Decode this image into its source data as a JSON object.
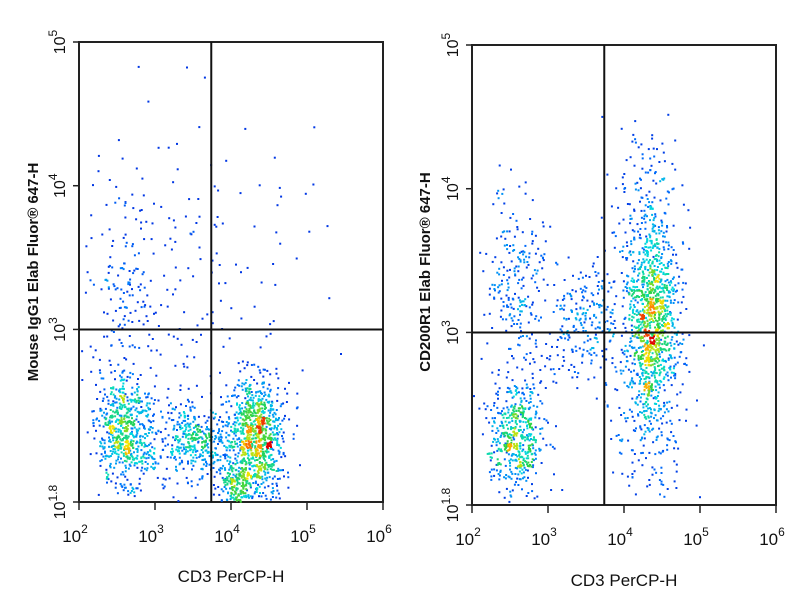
{
  "chart_data": [
    {
      "type": "scatter",
      "panel": "left",
      "title": "",
      "xlabel": "CD3 PerCP-H",
      "ylabel": "Mouse IgG1 Elab Fluor® 647-H",
      "x_scale": "log",
      "y_scale": "log",
      "xlim": [
        100,
        1000000
      ],
      "ylim": [
        63,
        100000
      ],
      "x_ticks": [
        {
          "value": 100,
          "base": "10",
          "exp": "2"
        },
        {
          "value": 1000,
          "base": "10",
          "exp": "3"
        },
        {
          "value": 10000,
          "base": "10",
          "exp": "4"
        },
        {
          "value": 100000,
          "base": "10",
          "exp": "5"
        },
        {
          "value": 1000000,
          "base": "10",
          "exp": "6"
        }
      ],
      "y_ticks": [
        {
          "value": 63,
          "base": "10",
          "exp": "1.8"
        },
        {
          "value": 1000,
          "base": "10",
          "exp": "3"
        },
        {
          "value": 10000,
          "base": "10",
          "exp": "4"
        },
        {
          "value": 100000,
          "base": "10",
          "exp": "5"
        }
      ],
      "gate": {
        "x": 5500,
        "y": 1000
      },
      "populations": [
        {
          "center_x": 400,
          "center_y": 185,
          "spread_x": 0.19,
          "spread_y": 0.2,
          "count": 600
        },
        {
          "center_x": 22000,
          "center_y": 180,
          "spread_x": 0.17,
          "spread_y": 0.22,
          "count": 900
        },
        {
          "center_x": 3500,
          "center_y": 170,
          "spread_x": 0.3,
          "spread_y": 0.15,
          "count": 450
        },
        {
          "center_x": 400,
          "center_y": 1600,
          "spread_x": 0.2,
          "spread_y": 0.4,
          "count": 140
        },
        {
          "center_x": 12000,
          "center_y": 80,
          "spread_x": 0.12,
          "spread_y": 0.08,
          "count": 160
        },
        {
          "center_x": 3000,
          "center_y": 2500,
          "spread_x": 0.9,
          "spread_y": 0.55,
          "count": 170
        }
      ]
    },
    {
      "type": "scatter",
      "panel": "right",
      "title": "",
      "xlabel": "CD3 PerCP-H",
      "ylabel": "CD200R1 Elab Fluor® 647-H",
      "x_scale": "log",
      "y_scale": "log",
      "xlim": [
        100,
        1000000
      ],
      "ylim": [
        63,
        100000
      ],
      "x_ticks": [
        {
          "value": 100,
          "base": "10",
          "exp": "2"
        },
        {
          "value": 1000,
          "base": "10",
          "exp": "3"
        },
        {
          "value": 10000,
          "base": "10",
          "exp": "4"
        },
        {
          "value": 100000,
          "base": "10",
          "exp": "5"
        },
        {
          "value": 1000000,
          "base": "10",
          "exp": "6"
        }
      ],
      "y_ticks": [
        {
          "value": 63,
          "base": "10",
          "exp": "1.8"
        },
        {
          "value": 1000,
          "base": "10",
          "exp": "3"
        },
        {
          "value": 10000,
          "base": "10",
          "exp": "4"
        },
        {
          "value": 100000,
          "base": "10",
          "exp": "5"
        }
      ],
      "gate": {
        "x": 5500,
        "y": 1000
      },
      "populations": [
        {
          "center_x": 380,
          "center_y": 190,
          "spread_x": 0.18,
          "spread_y": 0.2,
          "count": 500
        },
        {
          "center_x": 24000,
          "center_y": 1300,
          "spread_x": 0.17,
          "spread_y": 0.32,
          "count": 1000
        },
        {
          "center_x": 400,
          "center_y": 2000,
          "spread_x": 0.22,
          "spread_y": 0.35,
          "count": 230
        },
        {
          "center_x": 3000,
          "center_y": 1200,
          "spread_x": 0.25,
          "spread_y": 0.22,
          "count": 230
        },
        {
          "center_x": 20000,
          "center_y": 300,
          "spread_x": 0.25,
          "spread_y": 0.35,
          "count": 260
        },
        {
          "center_x": 18000,
          "center_y": 7000,
          "spread_x": 0.2,
          "spread_y": 0.3,
          "count": 140
        }
      ]
    }
  ]
}
